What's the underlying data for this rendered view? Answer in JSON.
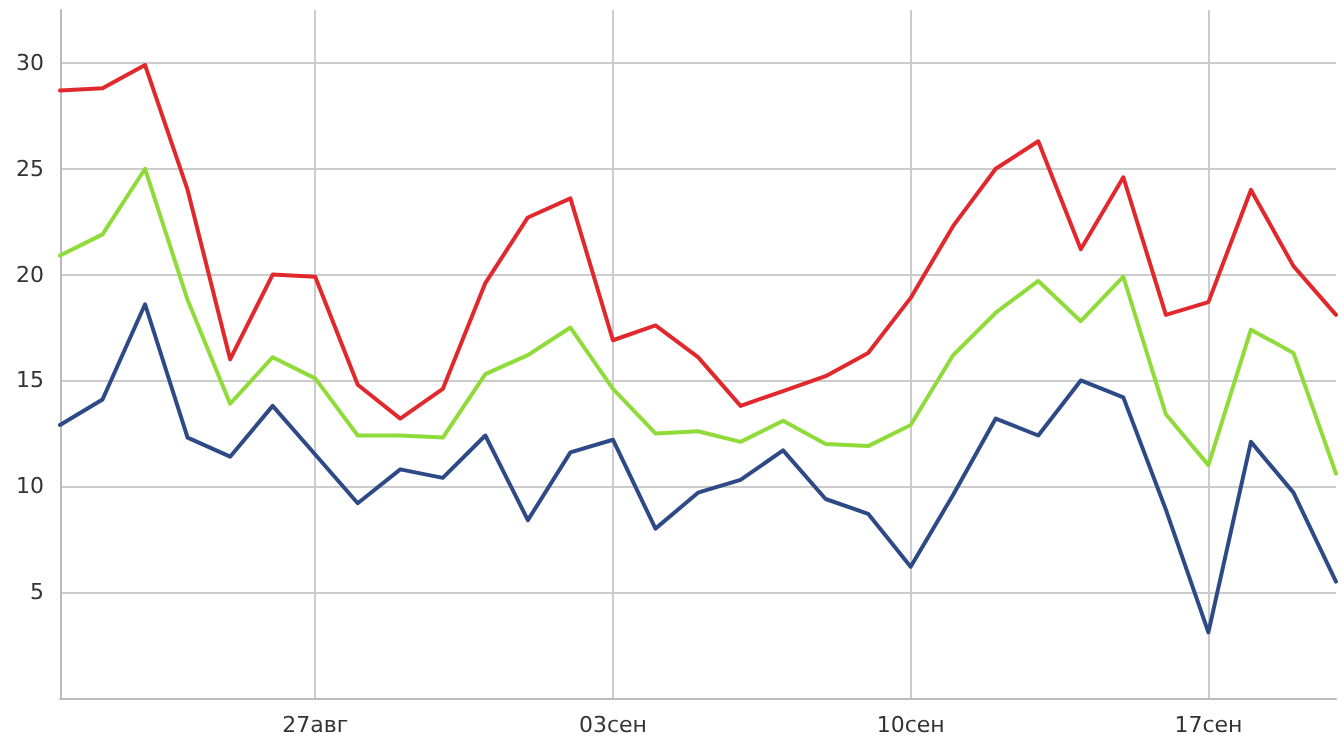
{
  "chart_data": {
    "type": "line",
    "x": [
      "--08-21",
      "--08-22",
      "--08-23",
      "--08-24",
      "--08-25",
      "--08-26",
      "--08-27",
      "--08-28",
      "--08-29",
      "--08-30",
      "--08-31",
      "--09-01",
      "--09-02",
      "--09-03",
      "--09-04",
      "--09-05",
      "--09-06",
      "--09-07",
      "--09-08",
      "--09-09",
      "--09-10",
      "--09-11",
      "--09-12",
      "--09-13",
      "--09-14",
      "--09-15",
      "--09-16",
      "--09-17",
      "--09-18",
      "--09-19",
      "--09-20"
    ],
    "series": [
      {
        "color": "#e0282d",
        "values": [
          28.7,
          28.8,
          29.9,
          24.0,
          16.0,
          20.0,
          19.9,
          14.8,
          13.2,
          14.6,
          19.6,
          22.7,
          23.6,
          16.9,
          17.6,
          16.1,
          13.8,
          14.5,
          15.2,
          16.3,
          18.9,
          22.3,
          25.0,
          26.3,
          21.2,
          24.6,
          18.1,
          18.7,
          24.0,
          20.4,
          18.1
        ]
      },
      {
        "color": "#8fdb3a",
        "values": [
          20.9,
          21.9,
          25.0,
          18.8,
          13.9,
          16.1,
          15.1,
          12.4,
          12.4,
          12.3,
          15.3,
          16.2,
          17.5,
          14.6,
          12.5,
          12.6,
          12.1,
          13.1,
          12.0,
          11.9,
          12.9,
          16.2,
          18.2,
          19.7,
          17.8,
          19.9,
          13.4,
          11.0,
          17.4,
          16.3,
          10.6
        ]
      },
      {
        "color": "#2e4a86",
        "values": [
          12.9,
          14.1,
          18.6,
          12.3,
          11.4,
          13.8,
          11.5,
          9.2,
          10.8,
          10.4,
          12.4,
          8.4,
          11.6,
          12.2,
          8.0,
          9.7,
          10.3,
          11.7,
          9.4,
          8.7,
          6.2,
          9.6,
          13.2,
          12.4,
          15.0,
          14.2,
          8.9,
          3.1,
          12.1,
          9.7,
          5.5
        ]
      }
    ],
    "xlim": [
      "--08-21",
      "--09-20"
    ],
    "xticks": [
      {
        "value": "--08-27",
        "label": "27авг"
      },
      {
        "value": "--09-03",
        "label": "03сен"
      },
      {
        "value": "--09-10",
        "label": "10сен"
      },
      {
        "value": "--09-17",
        "label": "17сен"
      }
    ],
    "ylim": [
      0,
      32.5
    ],
    "yticks": [
      5,
      10,
      15,
      20,
      25,
      30
    ],
    "grid": true,
    "marker": "none",
    "line_style": "solid"
  }
}
